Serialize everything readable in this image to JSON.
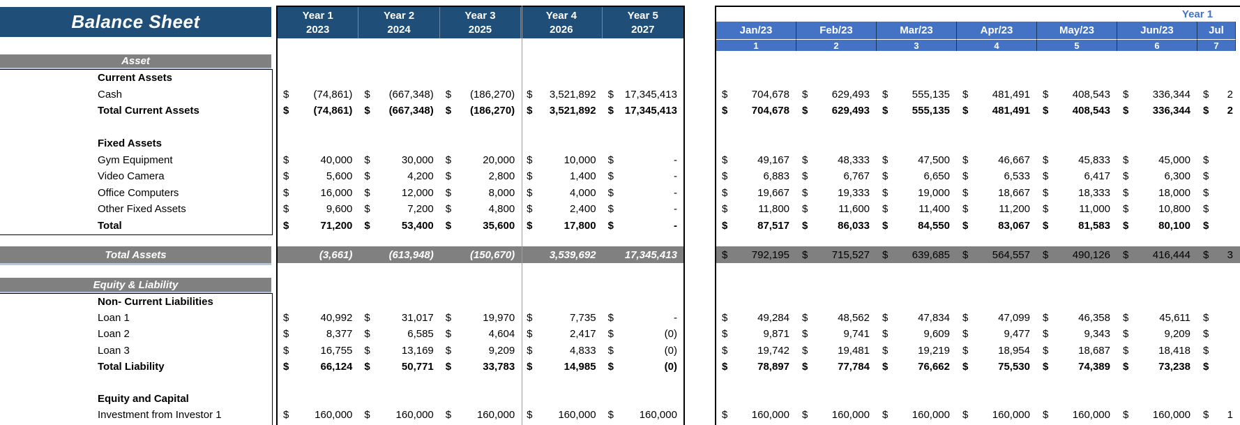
{
  "title": "Balance Sheet",
  "currency": "$",
  "section_bars": {
    "asset": "Asset",
    "equity": "Equity & Liability"
  },
  "yearly_table": {
    "headers": [
      {
        "line1": "Year 1",
        "line2": "2023"
      },
      {
        "line1": "Year 2",
        "line2": "2024"
      },
      {
        "line1": "Year 3",
        "line2": "2025"
      },
      {
        "line1": "Year 4",
        "line2": "2026"
      },
      {
        "line1": "Year 5",
        "line2": "2027"
      }
    ]
  },
  "monthly_table": {
    "group_label": "Year 1",
    "months": [
      "Jan/23",
      "Feb/23",
      "Mar/23",
      "Apr/23",
      "May/23",
      "Jun/23",
      "Jul"
    ],
    "month_numbers": [
      "1",
      "2",
      "3",
      "4",
      "5",
      "6",
      "7"
    ]
  },
  "asset_rows": [
    {
      "type": "section",
      "label": "Current Assets"
    },
    {
      "type": "data",
      "label": "Cash",
      "yearly": [
        "(74,861)",
        "(667,348)",
        "(186,270)",
        "3,521,892",
        "17,345,413"
      ],
      "monthly": [
        "704,678",
        "629,493",
        "555,135",
        "481,491",
        "408,543",
        "336,344",
        "2"
      ]
    },
    {
      "type": "total",
      "label": "Total Current Assets",
      "yearly": [
        "(74,861)",
        "(667,348)",
        "(186,270)",
        "3,521,892",
        "17,345,413"
      ],
      "monthly": [
        "704,678",
        "629,493",
        "555,135",
        "481,491",
        "408,543",
        "336,344",
        "2"
      ]
    },
    {
      "type": "blank",
      "label": ""
    },
    {
      "type": "section",
      "label": "Fixed Assets"
    },
    {
      "type": "data",
      "label": "Gym Equipment",
      "yearly": [
        "40,000",
        "30,000",
        "20,000",
        "10,000",
        "-"
      ],
      "monthly": [
        "49,167",
        "48,333",
        "47,500",
        "46,667",
        "45,833",
        "45,000",
        ""
      ]
    },
    {
      "type": "data",
      "label": "Video Camera",
      "yearly": [
        "5,600",
        "4,200",
        "2,800",
        "1,400",
        "-"
      ],
      "monthly": [
        "6,883",
        "6,767",
        "6,650",
        "6,533",
        "6,417",
        "6,300",
        ""
      ]
    },
    {
      "type": "data",
      "label": "Office Computers",
      "yearly": [
        "16,000",
        "12,000",
        "8,000",
        "4,000",
        "-"
      ],
      "monthly": [
        "19,667",
        "19,333",
        "19,000",
        "18,667",
        "18,333",
        "18,000",
        ""
      ]
    },
    {
      "type": "data",
      "label": "Other Fixed Assets",
      "yearly": [
        "9,600",
        "7,200",
        "4,800",
        "2,400",
        "-"
      ],
      "monthly": [
        "11,800",
        "11,600",
        "11,400",
        "11,200",
        "11,000",
        "10,800",
        ""
      ]
    },
    {
      "type": "total",
      "label": "Total",
      "yearly": [
        "71,200",
        "53,400",
        "35,600",
        "17,800",
        "-"
      ],
      "monthly": [
        "87,517",
        "86,033",
        "84,550",
        "83,067",
        "81,583",
        "80,100",
        ""
      ]
    }
  ],
  "total_assets": {
    "label": "Total Assets",
    "yearly": [
      "(3,661)",
      "(613,948)",
      "(150,670)",
      "3,539,692",
      "17,345,413"
    ],
    "monthly": [
      "792,195",
      "715,527",
      "639,685",
      "564,557",
      "490,126",
      "416,444",
      "3"
    ]
  },
  "liability_rows": [
    {
      "type": "section",
      "label": "Non- Current Liabilities"
    },
    {
      "type": "data",
      "label": "Loan 1",
      "yearly": [
        "40,992",
        "31,017",
        "19,970",
        "7,735",
        "-"
      ],
      "monthly": [
        "49,284",
        "48,562",
        "47,834",
        "47,099",
        "46,358",
        "45,611",
        ""
      ]
    },
    {
      "type": "data",
      "label": "Loan 2",
      "yearly": [
        "8,377",
        "6,585",
        "4,604",
        "2,417",
        "(0)"
      ],
      "monthly": [
        "9,871",
        "9,741",
        "9,609",
        "9,477",
        "9,343",
        "9,209",
        ""
      ]
    },
    {
      "type": "data",
      "label": "Loan 3",
      "yearly": [
        "16,755",
        "13,169",
        "9,209",
        "4,833",
        "(0)"
      ],
      "monthly": [
        "19,742",
        "19,481",
        "19,219",
        "18,954",
        "18,687",
        "18,418",
        ""
      ]
    },
    {
      "type": "total",
      "label": "Total Liability",
      "yearly": [
        "66,124",
        "50,771",
        "33,783",
        "14,985",
        "(0)"
      ],
      "monthly": [
        "78,897",
        "77,784",
        "76,662",
        "75,530",
        "74,389",
        "73,238",
        ""
      ]
    },
    {
      "type": "blank",
      "label": ""
    },
    {
      "type": "section",
      "label": "Equity and Capital"
    },
    {
      "type": "data",
      "label": "Investment from Investor 1",
      "yearly": [
        "160,000",
        "160,000",
        "160,000",
        "160,000",
        "160,000"
      ],
      "monthly": [
        "160,000",
        "160,000",
        "160,000",
        "160,000",
        "160,000",
        "160,000",
        "1"
      ]
    }
  ],
  "colors": {
    "header_dark_blue": "#1F4E78",
    "month_blue": "#4472C4",
    "bar_gray": "#808080",
    "underline_blue": "#B4C7E0"
  }
}
